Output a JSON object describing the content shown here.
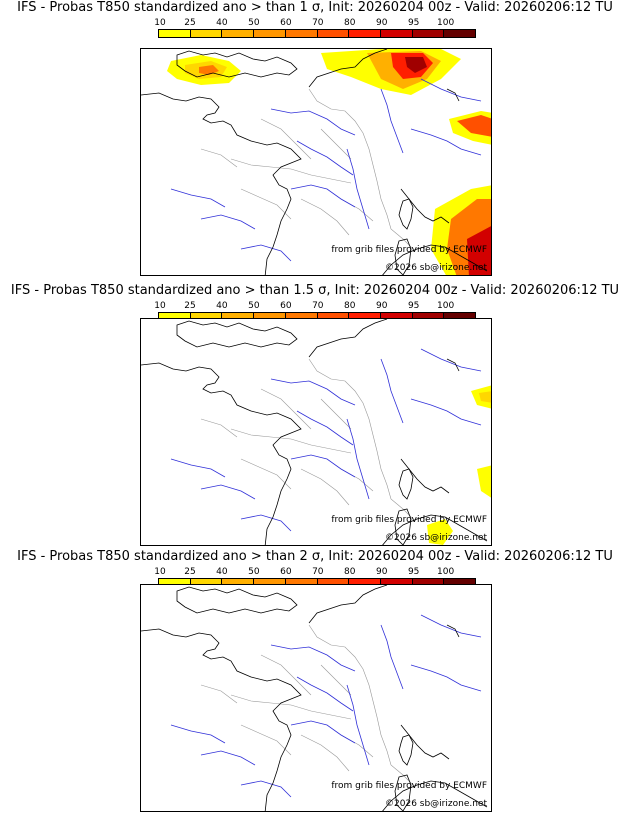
{
  "panels": [
    {
      "title": "IFS - Probas T850  standardized ano > than 1 σ, Init: 20260204 00z - Valid: 20260206:12 TU",
      "source_credit": "from grib files provided by ECMWF",
      "copyright": "©2026 sb@irizone.net",
      "anomaly_zones": [
        "English Channel / southern England",
        "Benelux and western Germany",
        "Switzerland",
        "Liguria and Italy coast"
      ]
    },
    {
      "title": "IFS - Probas T850  standardized ano > than 1.5 σ, Init: 20260204 00z - Valid: 20260206:12 TU",
      "source_credit": "from grib files provided by ECMWF",
      "copyright": "©2026 sb@irizone.net",
      "anomaly_zones": [
        "Switzerland",
        "Corsica / Italy coast"
      ]
    },
    {
      "title": "IFS - Probas T850  standardized ano > than 2 σ, Init: 20260204 00z - Valid: 20260206:12 TU",
      "source_credit": "from grib files provided by ECMWF",
      "copyright": "©2026 sb@irizone.net",
      "anomaly_zones": []
    }
  ],
  "colorbar": {
    "labels": [
      "10",
      "25",
      "40",
      "50",
      "60",
      "70",
      "80",
      "90",
      "95",
      "100"
    ],
    "colors": [
      "#ffff00",
      "#ffd700",
      "#ffb000",
      "#ff9600",
      "#ff7800",
      "#ff5000",
      "#ff1e00",
      "#d20000",
      "#a00000",
      "#640000"
    ]
  }
}
